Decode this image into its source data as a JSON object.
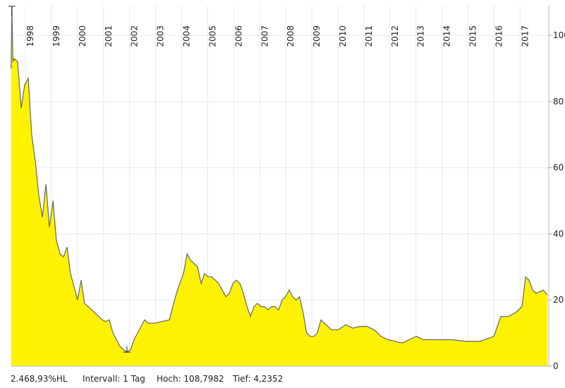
{
  "chart_data": {
    "type": "area",
    "x": [
      1997.45,
      1997.48,
      1997.52,
      1997.57,
      1997.7,
      1997.84,
      1997.97,
      1998.11,
      1998.24,
      1998.38,
      1998.51,
      1998.65,
      1998.79,
      1998.92,
      1999.06,
      1999.19,
      1999.33,
      1999.46,
      1999.6,
      1999.73,
      1999.87,
      2000.0,
      2000.14,
      2000.27,
      2000.41,
      2000.55,
      2000.68,
      2000.82,
      2000.95,
      2001.09,
      2001.22,
      2001.36,
      2001.5,
      2001.63,
      2001.77,
      2001.9,
      2002.04,
      2002.17,
      2002.31,
      2002.44,
      2002.58,
      2002.71,
      2002.99,
      2003.26,
      2003.53,
      2003.66,
      2003.8,
      2003.93,
      2004.07,
      2004.21,
      2004.34,
      2004.48,
      2004.61,
      2004.75,
      2004.88,
      2005.02,
      2005.15,
      2005.29,
      2005.42,
      2005.56,
      2005.7,
      2005.83,
      2005.97,
      2006.1,
      2006.24,
      2006.37,
      2006.51,
      2006.64,
      2006.78,
      2006.91,
      2007.05,
      2007.18,
      2007.32,
      2007.45,
      2007.59,
      2007.72,
      2007.86,
      2007.99,
      2008.13,
      2008.26,
      2008.4,
      2008.53,
      2008.67,
      2008.8,
      2008.94,
      2009.08,
      2009.21,
      2009.35,
      2009.48,
      2009.62,
      2009.75,
      2010.02,
      2010.3,
      2010.44,
      2010.57,
      2010.84,
      2011.12,
      2011.39,
      2011.66,
      2011.93,
      2012.2,
      2012.47,
      2012.74,
      2013.01,
      2013.28,
      2013.83,
      2014.37,
      2014.91,
      2015.45,
      2015.99,
      2016.26,
      2016.53,
      2016.8,
      2017.07,
      2017.21,
      2017.34,
      2017.48,
      2017.61,
      2017.89,
      2018.05
    ],
    "series": [
      {
        "color": "#fff200",
        "line_color": "#666666",
        "values": [
          90,
          108.8,
          92,
          93,
          92,
          78,
          85,
          87,
          70,
          62,
          52,
          45,
          55,
          42,
          50,
          38,
          34,
          33,
          36,
          28,
          24,
          20,
          26,
          19,
          18,
          17,
          16,
          15,
          14,
          13.5,
          14,
          10,
          8,
          6,
          5,
          4.24,
          5,
          8,
          10,
          12,
          14,
          13,
          13,
          13.5,
          14,
          18,
          22,
          25,
          28,
          34,
          32,
          31,
          30,
          25,
          28,
          27,
          27,
          26,
          25,
          23,
          21,
          22,
          25,
          26,
          25,
          22,
          18,
          15,
          18,
          19,
          18,
          18,
          17,
          18,
          18,
          17,
          20,
          21,
          23,
          21,
          20,
          21,
          16,
          10,
          9,
          9,
          10,
          14,
          13,
          12,
          11,
          11,
          12.5,
          12,
          11.5,
          12,
          12,
          11,
          9,
          8,
          7.5,
          7,
          8,
          9,
          8,
          8,
          8,
          7.5,
          7.5,
          9,
          15,
          15,
          16,
          18,
          27,
          26,
          23,
          22,
          23,
          21.5
        ]
      }
    ],
    "markers": [
      {
        "x": 1997.48,
        "value": 108.7982
      },
      {
        "x": 2001.9,
        "value": 4.2352
      }
    ],
    "xlim": [
      1997.43,
      2018.1
    ],
    "xticks": [
      1998,
      1999,
      2000,
      2001,
      2002,
      2003,
      2004,
      2005,
      2006,
      2007,
      2008,
      2009,
      2010,
      2011,
      2012,
      2013,
      2014,
      2015,
      2016,
      2017
    ],
    "ylim": [
      0,
      109
    ],
    "yticks": [
      0,
      20,
      40,
      60,
      80,
      100
    ],
    "grid": true,
    "footer": [
      "2.468,93%HL",
      "Intervall: 1 Tag",
      "Hoch: 108,7982",
      "Tief: 4,2352"
    ]
  }
}
